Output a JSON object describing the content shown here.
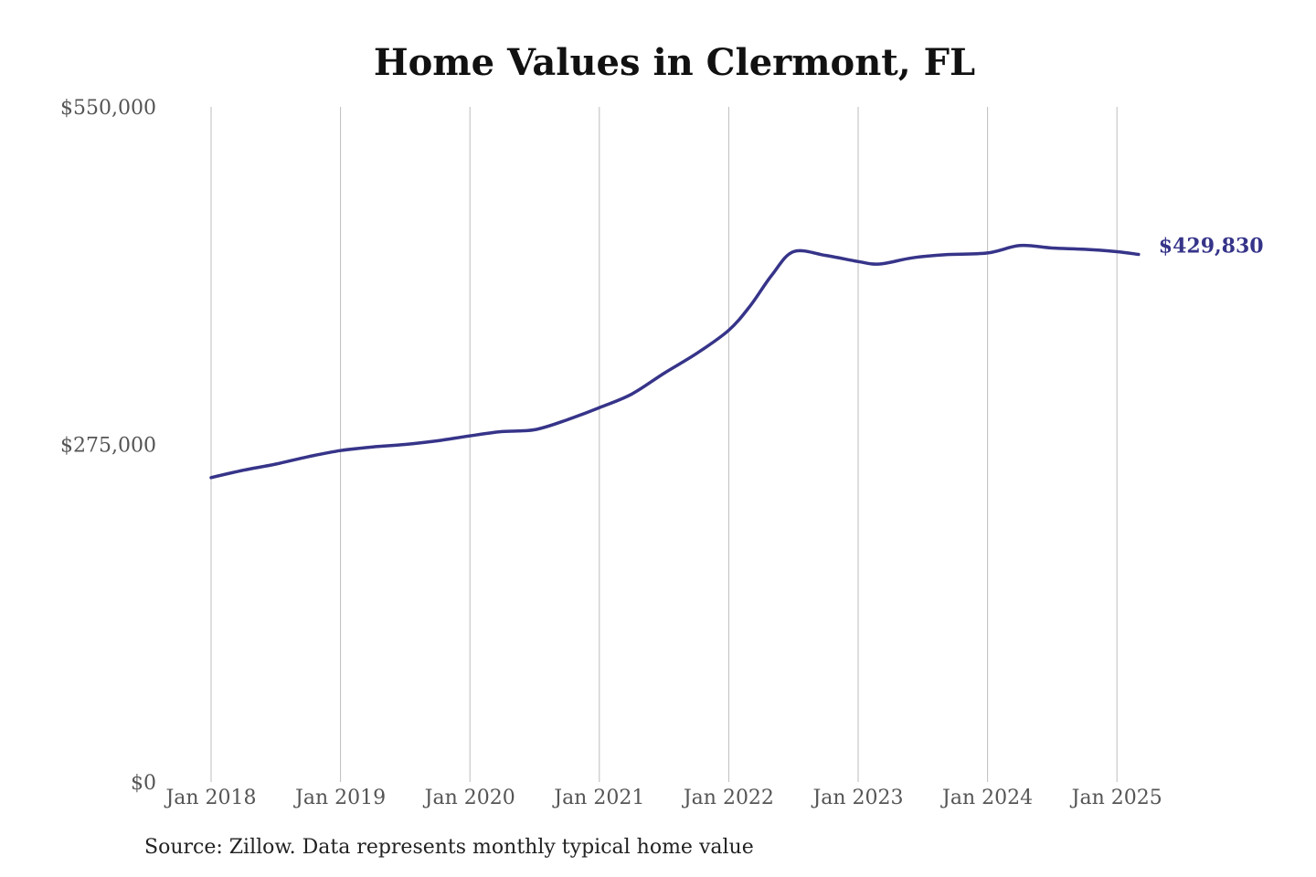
{
  "chart_data": {
    "type": "line",
    "title": "Home Values in Clermont, FL",
    "xlabel": "",
    "ylabel": "",
    "ylim": [
      0,
      550000
    ],
    "y_ticks": [
      {
        "value": 0,
        "label": "$0"
      },
      {
        "value": 275000,
        "label": "$275,000"
      },
      {
        "value": 550000,
        "label": "$550,000"
      }
    ],
    "x_ticks": [
      {
        "value": "2018-01",
        "label": "Jan 2018"
      },
      {
        "value": "2019-01",
        "label": "Jan 2019"
      },
      {
        "value": "2020-01",
        "label": "Jan 2020"
      },
      {
        "value": "2021-01",
        "label": "Jan 2021"
      },
      {
        "value": "2022-01",
        "label": "Jan 2022"
      },
      {
        "value": "2023-01",
        "label": "Jan 2023"
      },
      {
        "value": "2024-01",
        "label": "Jan 2024"
      },
      {
        "value": "2025-01",
        "label": "Jan 2025"
      }
    ],
    "grid": "vertical",
    "line_color": "#363489",
    "series": [
      {
        "x": [
          "2018-01",
          "2018-04",
          "2018-07",
          "2018-10",
          "2019-01",
          "2019-04",
          "2019-07",
          "2019-10",
          "2020-01",
          "2020-04",
          "2020-07",
          "2020-10",
          "2021-01",
          "2021-04",
          "2021-07",
          "2021-10",
          "2022-01",
          "2022-03",
          "2022-05",
          "2022-07",
          "2022-10",
          "2023-01",
          "2023-03",
          "2023-06",
          "2023-09",
          "2024-01",
          "2024-04",
          "2024-07",
          "2024-10",
          "2025-01",
          "2025-03"
        ],
        "values": [
          248000,
          254000,
          259000,
          265000,
          270000,
          273000,
          275000,
          278000,
          282000,
          285500,
          287000,
          295000,
          305000,
          316000,
          333000,
          349000,
          368000,
          388000,
          413000,
          432000,
          429000,
          424000,
          422000,
          427000,
          429500,
          431000,
          437000,
          435000,
          434000,
          432000,
          429830
        ]
      }
    ],
    "end_label": "$429,830"
  },
  "source": "Source: Zillow. Data represents monthly typical home value"
}
